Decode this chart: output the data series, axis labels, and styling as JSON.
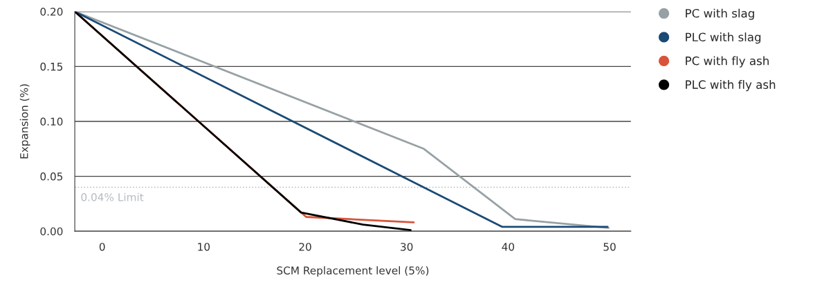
{
  "chart_data": {
    "type": "line",
    "xlabel": "SCM Replacement level (5%)",
    "ylabel": "Expansion (%)",
    "xlim": [
      -2.7,
      52.1
    ],
    "ylim": [
      0,
      0.2
    ],
    "xticks": [
      0,
      10,
      20,
      30,
      40,
      50
    ],
    "yticks": [
      {
        "value": 0,
        "label": "0.00"
      },
      {
        "value": 0.05,
        "label": "0.05"
      },
      {
        "value": 0.1,
        "label": "0.10"
      },
      {
        "value": 0.15,
        "label": "0.15"
      },
      {
        "value": 0.2,
        "label": "0.20"
      }
    ],
    "grid": "y",
    "legend": "top right",
    "marker": "none",
    "line_style": "solid",
    "ref_lines": [
      {
        "axis": "y",
        "value": 0.04,
        "label": "0.04% Limit",
        "color": "#b5bcbf",
        "line_style": "dotted"
      }
    ],
    "series": [
      {
        "name": "PC with slag",
        "color": "#97a1a5",
        "x": [
          -2.7,
          31.7,
          40.7,
          49.9
        ],
        "values": [
          0.2,
          0.075,
          0.011,
          0.003
        ]
      },
      {
        "name": "PLC with slag",
        "color": "#1a4a75",
        "x": [
          -2.7,
          39.4,
          49.8
        ],
        "values": [
          0.2,
          0.004,
          0.004
        ]
      },
      {
        "name": "PC with fly ash",
        "color": "#d9533a",
        "x": [
          -2.7,
          20.1,
          30.7
        ],
        "values": [
          0.2,
          0.013,
          0.008
        ]
      },
      {
        "name": "PLC with fly ash",
        "color": "#000000",
        "x": [
          -2.7,
          19.6,
          25.7,
          30.4
        ],
        "values": [
          0.2,
          0.017,
          0.006,
          0.001
        ]
      }
    ]
  }
}
